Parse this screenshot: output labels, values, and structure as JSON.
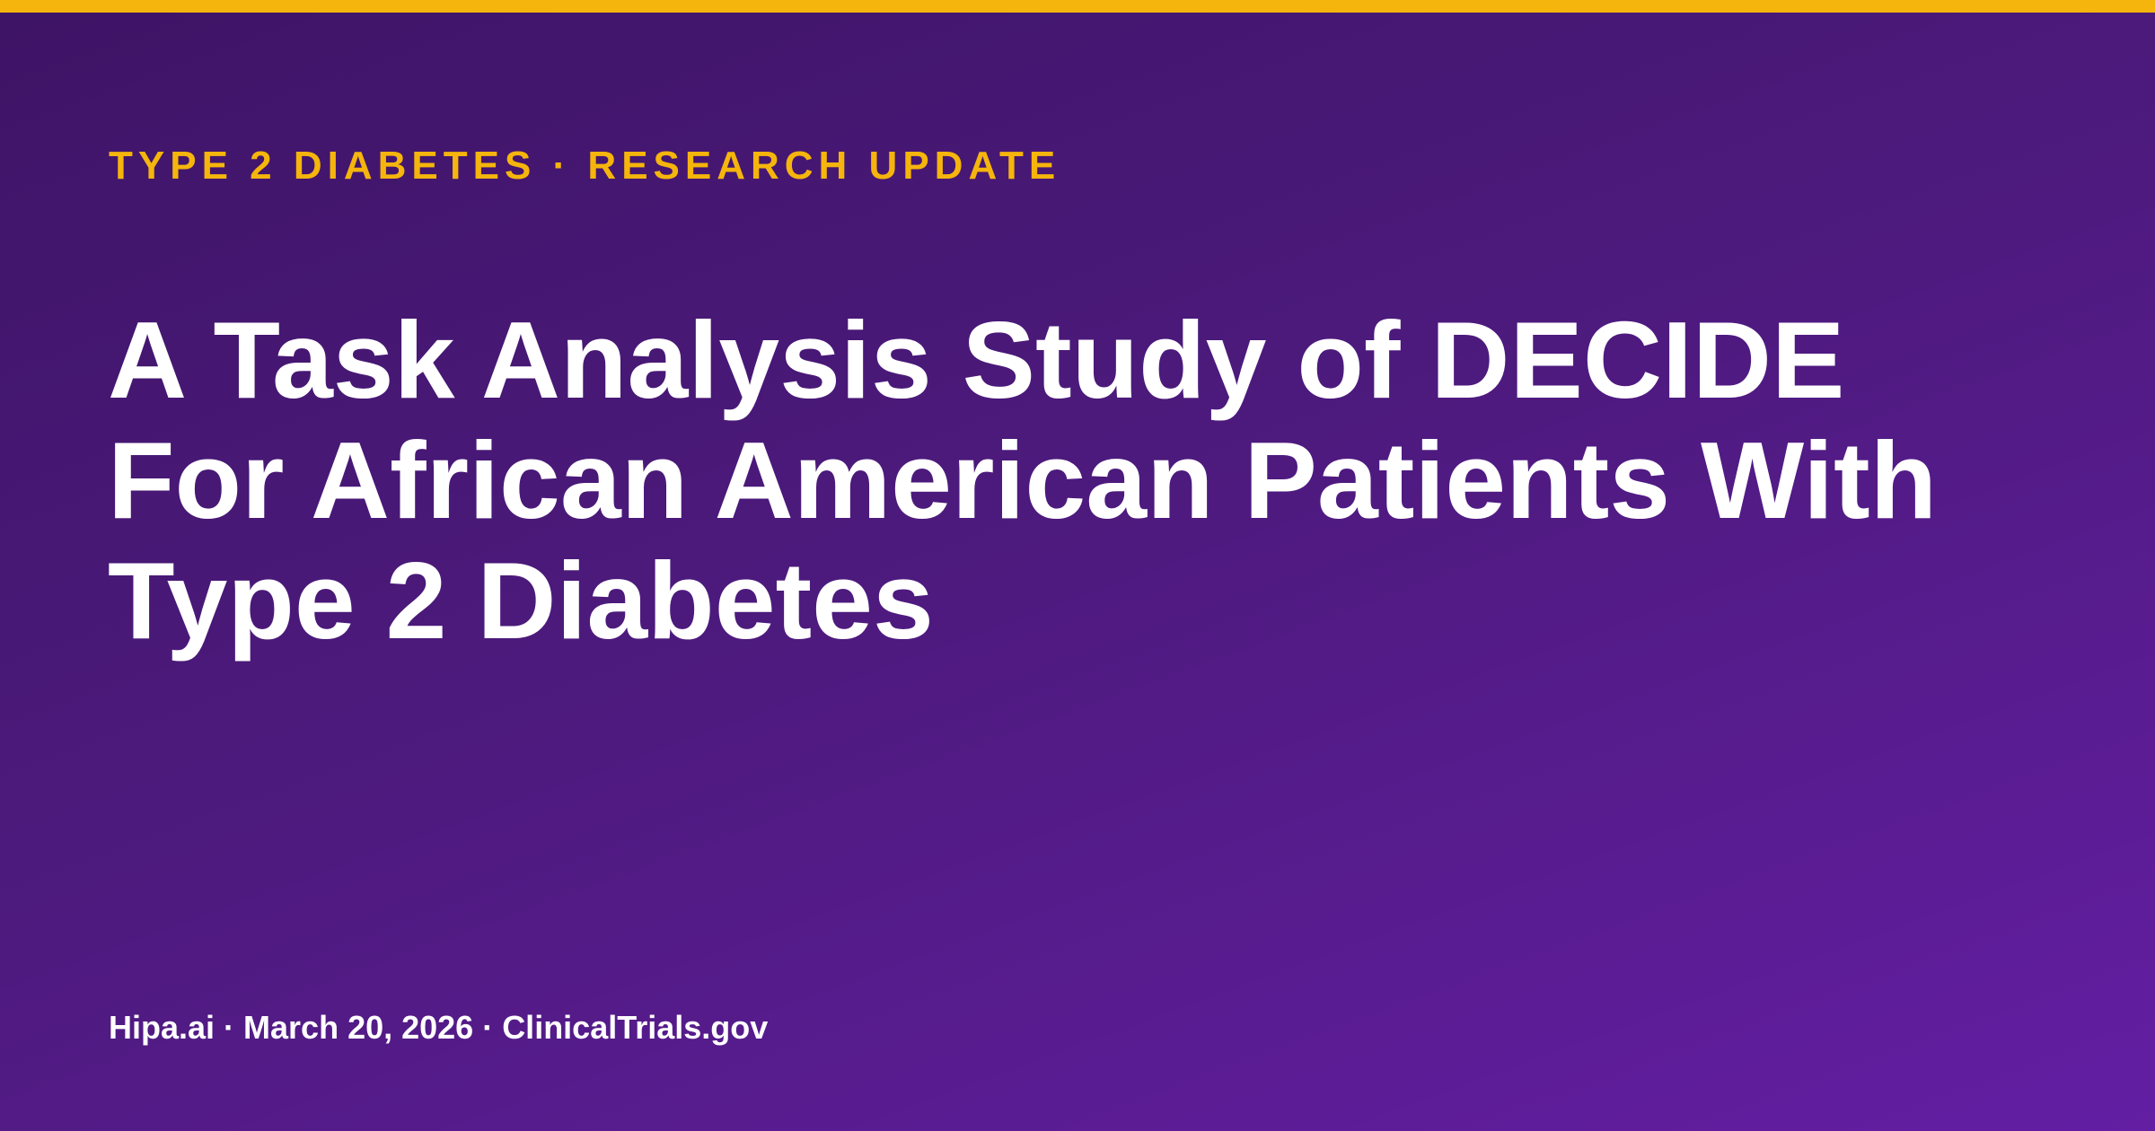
{
  "colors": {
    "accent": "#f5b50c",
    "background_start": "#3e1466",
    "background_end": "#631ea3",
    "text": "#ffffff"
  },
  "card": {
    "kicker": "TYPE 2 DIABETES · RESEARCH UPDATE",
    "title_lines": [
      "A Task Analysis Study of DECIDE",
      "For African American Patients With",
      "Type 2 Diabetes"
    ],
    "footer": "Hipa.ai · March 20, 2026 · ClinicalTrials.gov"
  }
}
